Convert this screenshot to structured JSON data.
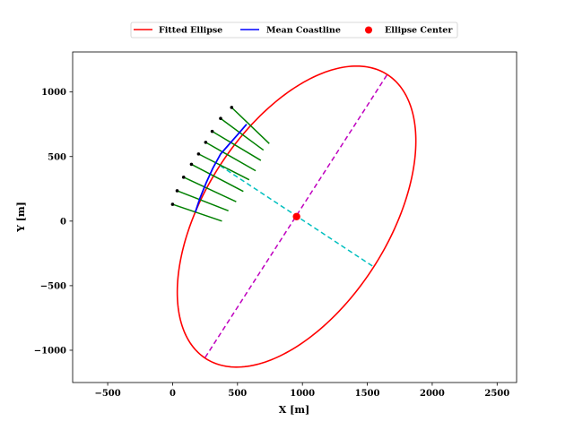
{
  "chart_data": {
    "type": "line",
    "xlabel": "X [m]",
    "ylabel": "Y [m]",
    "xlim": [
      -770,
      2650
    ],
    "ylim": [
      -1250,
      1310
    ],
    "xticks": [
      -500,
      0,
      500,
      1000,
      1500,
      2000,
      2500
    ],
    "yticks": [
      -1000,
      -500,
      0,
      500,
      1000
    ],
    "xtick_labels": [
      "−500",
      "0",
      "500",
      "1000",
      "1500",
      "2000",
      "2500"
    ],
    "ytick_labels": [
      "−1000",
      "−500",
      "0",
      "500",
      "1000"
    ],
    "grid": false,
    "legend_position": "top-center, above plot",
    "legend": [
      {
        "label": "Fitted Ellipse",
        "color": "#ff0000",
        "marker": "line"
      },
      {
        "label": "Mean Coastline",
        "color": "#0000ff",
        "marker": "line"
      },
      {
        "label": "Ellipse Center",
        "color": "#ff0000",
        "marker": "dot"
      }
    ],
    "ellipse": {
      "center": [
        955,
        35
      ],
      "major_axis_endpoints": [
        [
          1650,
          1130
        ],
        [
          245,
          -1065
        ]
      ],
      "minor_axis_endpoints": [
        [
          365,
          430
        ],
        [
          1550,
          -355
        ]
      ],
      "color": "#ff0000"
    },
    "ellipse_center": {
      "x": 955,
      "y": 35,
      "color": "#ff0000"
    },
    "major_axis_color": "#bf00bf",
    "minor_axis_color": "#00bfbf",
    "mean_coastline": {
      "color": "#0000ff",
      "x": [
        175,
        210,
        260,
        310,
        370,
        440,
        510,
        570
      ],
      "y": [
        70,
        175,
        300,
        410,
        520,
        600,
        680,
        750
      ]
    },
    "transects": {
      "color": "#008000",
      "start_marker_color": "#000000",
      "segments": [
        {
          "start": [
            0,
            130
          ],
          "end": [
            380,
            0
          ]
        },
        {
          "start": [
            35,
            235
          ],
          "end": [
            430,
            80
          ]
        },
        {
          "start": [
            85,
            340
          ],
          "end": [
            490,
            150
          ]
        },
        {
          "start": [
            145,
            440
          ],
          "end": [
            545,
            230
          ]
        },
        {
          "start": [
            200,
            520
          ],
          "end": [
            590,
            320
          ]
        },
        {
          "start": [
            255,
            610
          ],
          "end": [
            640,
            390
          ]
        },
        {
          "start": [
            305,
            695
          ],
          "end": [
            680,
            470
          ]
        },
        {
          "start": [
            370,
            795
          ],
          "end": [
            700,
            550
          ]
        },
        {
          "start": [
            455,
            880
          ],
          "end": [
            745,
            600
          ]
        }
      ]
    }
  }
}
